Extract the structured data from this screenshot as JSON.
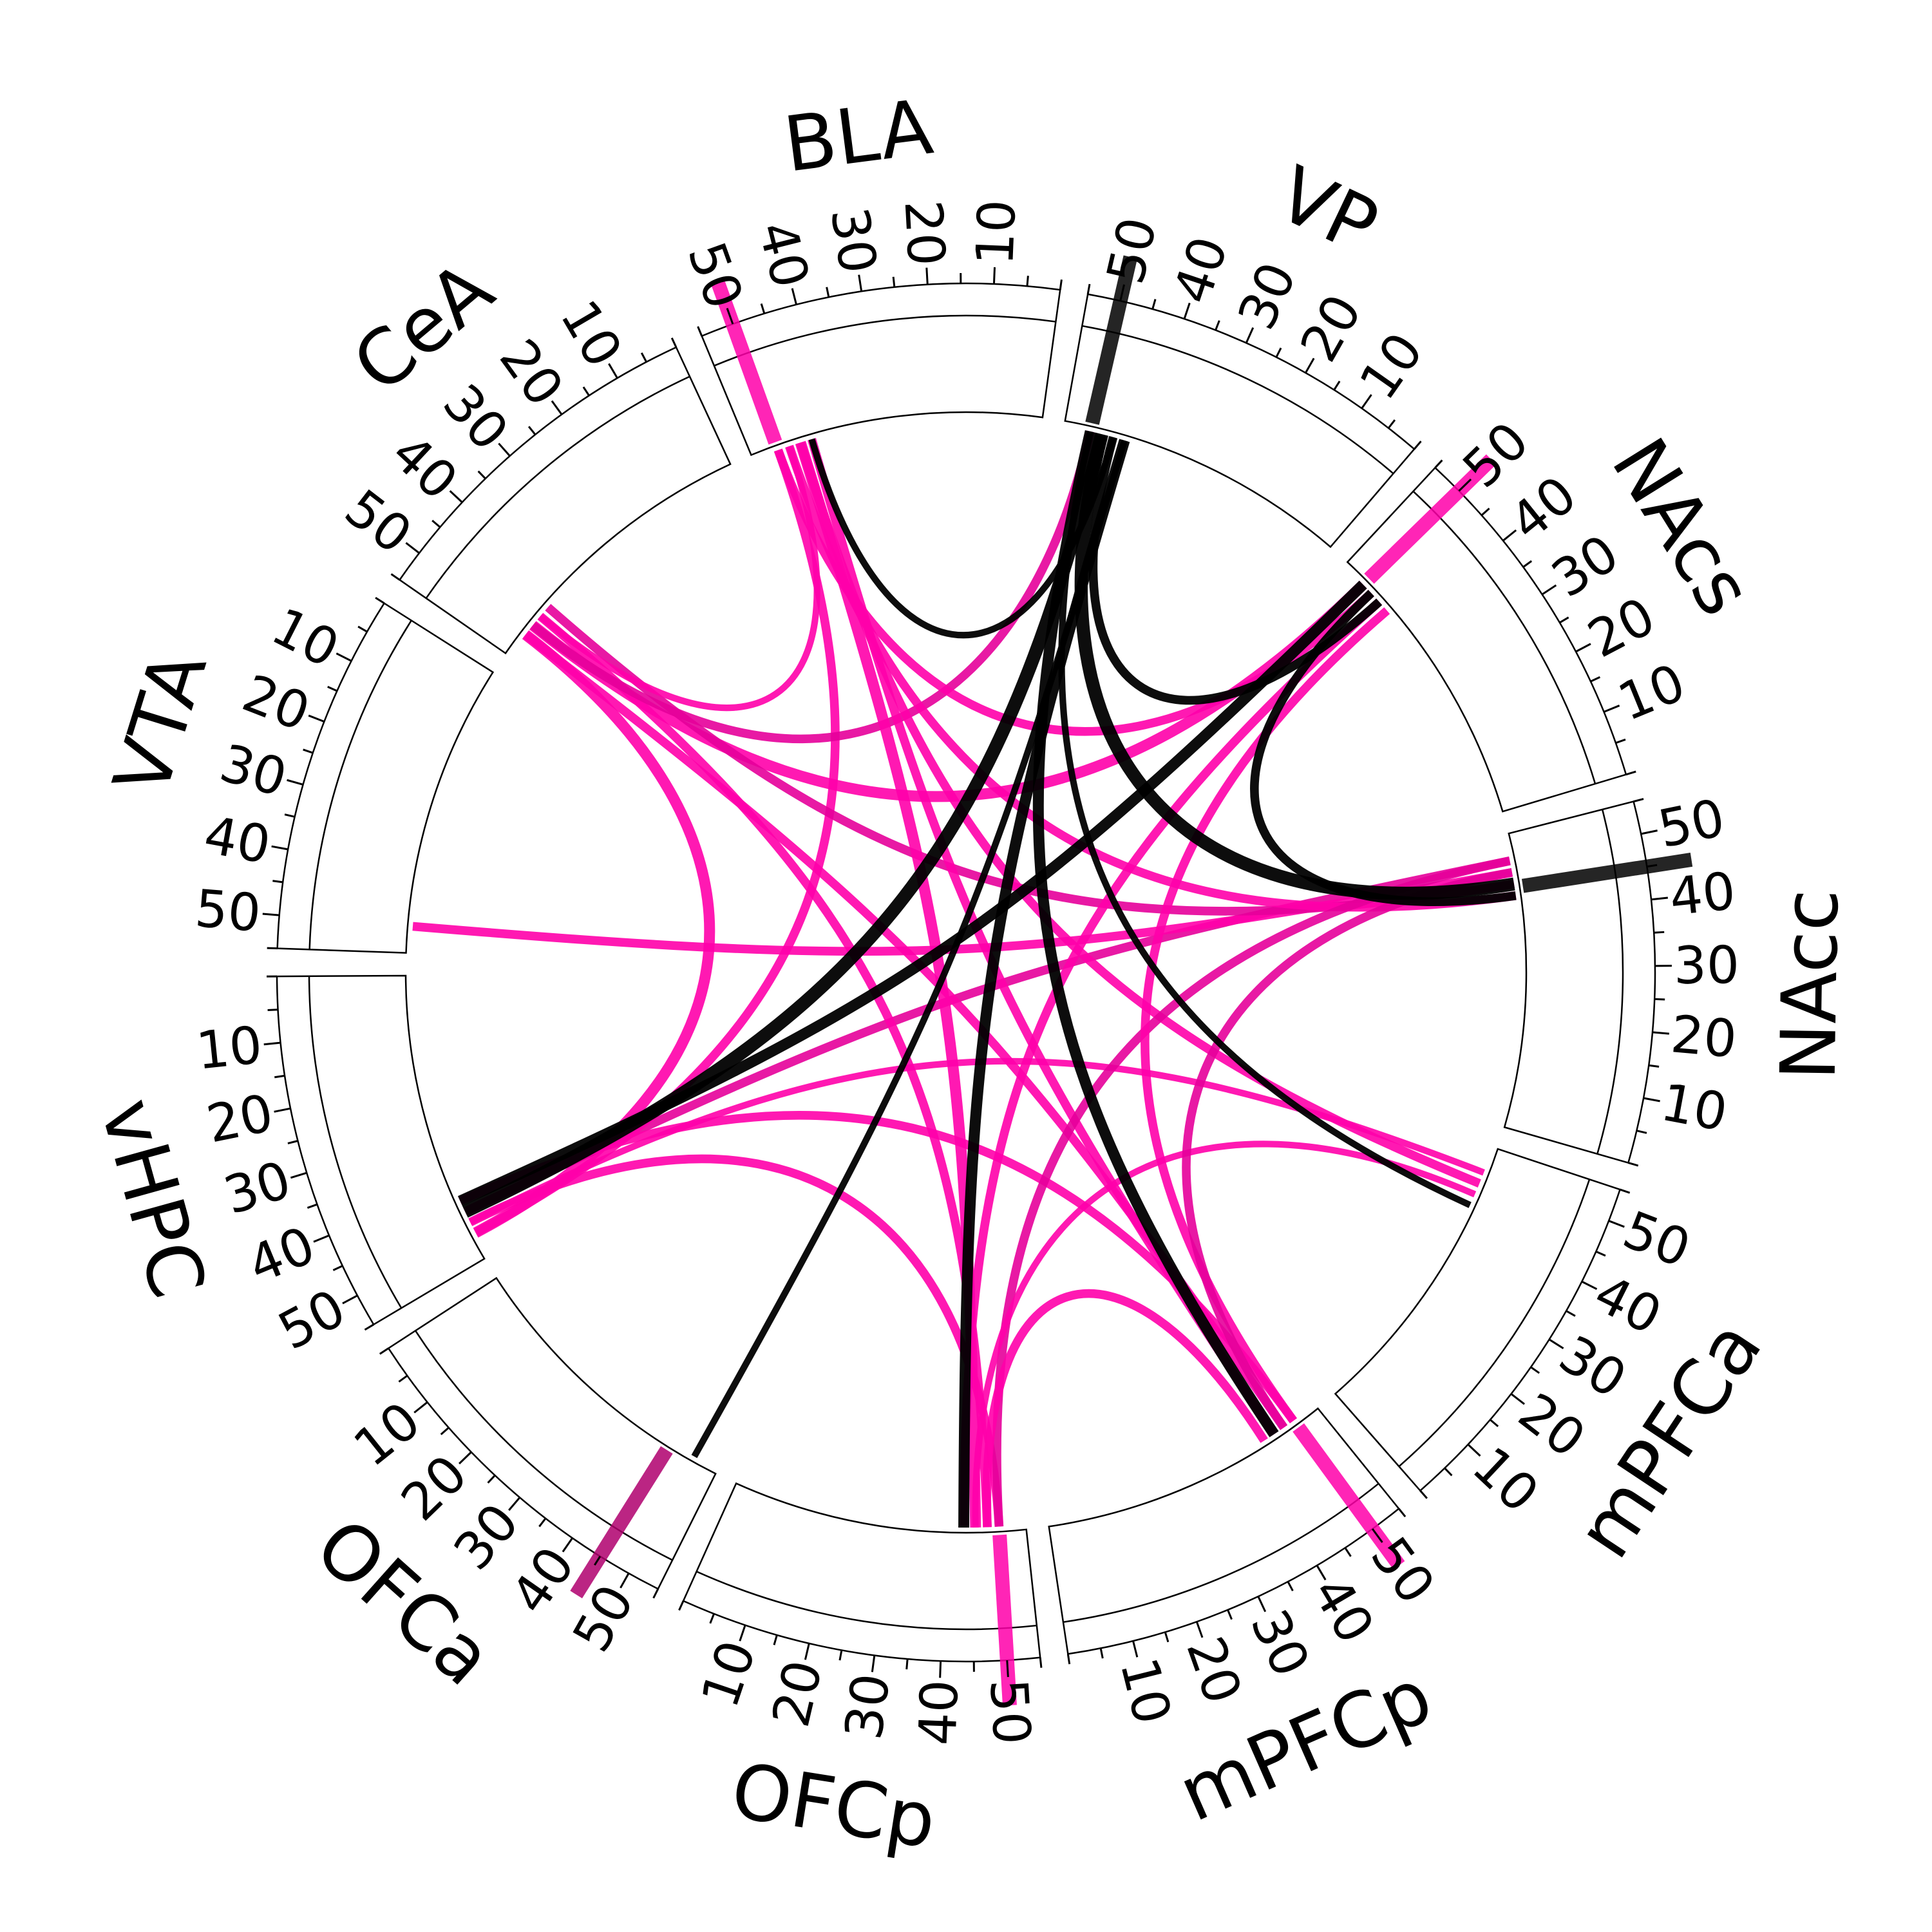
{
  "chart_data": {
    "type": "chord",
    "title": "",
    "colors": {
      "pink": "#ff00aa",
      "magenta": "#e6009a",
      "black": "#000000"
    },
    "tick_values": [
      10,
      20,
      30,
      40,
      50
    ],
    "regions": [
      {
        "name": "VTA"
      },
      {
        "name": "CeA"
      },
      {
        "name": "BLA"
      },
      {
        "name": "VP"
      },
      {
        "name": "NAcs"
      },
      {
        "name": "NAcc"
      },
      {
        "name": "mPFCa"
      },
      {
        "name": "mPFCp"
      },
      {
        "name": "OFCp"
      },
      {
        "name": "OFCa"
      },
      {
        "name": "vHPC"
      }
    ],
    "outer_bars": [
      {
        "region": "OFCa",
        "value": 45,
        "color": "mixed"
      },
      {
        "region": "OFCp",
        "value": 50,
        "color": "pink"
      },
      {
        "region": "mPFCp",
        "value": 50,
        "color": "pink"
      },
      {
        "region": "BLA",
        "value": 50,
        "color": "pink"
      },
      {
        "region": "VP",
        "value": 50,
        "color": "black"
      },
      {
        "region": "NAcs",
        "value": 50,
        "color": "pink"
      },
      {
        "region": "NAcc",
        "value": 45,
        "color": "black"
      }
    ],
    "connections": [
      {
        "from": "vHPC",
        "to": "VP",
        "color": "black",
        "width": 6
      },
      {
        "from": "vHPC",
        "to": "NAcs",
        "color": "black",
        "width": 5
      },
      {
        "from": "vHPC",
        "to": "CeA",
        "color": "pink",
        "width": 5
      },
      {
        "from": "vHPC",
        "to": "OFCp",
        "color": "pink",
        "width": 4
      },
      {
        "from": "vHPC",
        "to": "NAcc",
        "color": "magenta",
        "width": 4
      },
      {
        "from": "vHPC",
        "to": "mPFCp",
        "color": "pink",
        "width": 4
      },
      {
        "from": "vHPC",
        "to": "BLA",
        "color": "pink",
        "width": 4
      },
      {
        "from": "vHPC",
        "to": "mPFCa",
        "color": "pink",
        "width": 3
      },
      {
        "from": "VTA",
        "to": "NAcc",
        "color": "pink",
        "width": 4
      },
      {
        "from": "CeA",
        "to": "NAcs",
        "color": "pink",
        "width": 5
      },
      {
        "from": "CeA",
        "to": "OFCp",
        "color": "pink",
        "width": 4
      },
      {
        "from": "CeA",
        "to": "NAcc",
        "color": "magenta",
        "width": 4
      },
      {
        "from": "CeA",
        "to": "mPFCp",
        "color": "pink",
        "width": 4
      },
      {
        "from": "CeA",
        "to": "VP",
        "color": "magenta",
        "width": 4
      },
      {
        "from": "CeA",
        "to": "BLA",
        "color": "pink",
        "width": 3
      },
      {
        "from": "BLA",
        "to": "OFCp",
        "color": "pink",
        "width": 5
      },
      {
        "from": "BLA",
        "to": "mPFCp",
        "color": "pink",
        "width": 4
      },
      {
        "from": "BLA",
        "to": "NAcs",
        "color": "pink",
        "width": 4
      },
      {
        "from": "BLA",
        "to": "NAcc",
        "color": "pink",
        "width": 4
      },
      {
        "from": "BLA",
        "to": "mPFCa",
        "color": "pink",
        "width": 4
      },
      {
        "from": "BLA",
        "to": "VP",
        "color": "black",
        "width": 3
      },
      {
        "from": "OFCp",
        "to": "VP",
        "color": "black",
        "width": 5
      },
      {
        "from": "OFCp",
        "to": "NAcs",
        "color": "pink",
        "width": 4
      },
      {
        "from": "OFCp",
        "to": "NAcc",
        "color": "magenta",
        "width": 4
      },
      {
        "from": "OFCp",
        "to": "mPFCp",
        "color": "pink",
        "width": 4
      },
      {
        "from": "OFCp",
        "to": "mPFCa",
        "color": "pink",
        "width": 3
      },
      {
        "from": "mPFCp",
        "to": "VP",
        "color": "black",
        "width": 5
      },
      {
        "from": "mPFCp",
        "to": "NAcs",
        "color": "pink",
        "width": 4
      },
      {
        "from": "mPFCp",
        "to": "NAcc",
        "color": "magenta",
        "width": 4
      },
      {
        "from": "NAcc",
        "to": "VP",
        "color": "black",
        "width": 6
      },
      {
        "from": "NAcc",
        "to": "NAcs",
        "color": "black",
        "width": 4
      },
      {
        "from": "NAcs",
        "to": "VP",
        "color": "black",
        "width": 4
      },
      {
        "from": "OFCa",
        "to": "VP",
        "color": "black",
        "width": 3
      },
      {
        "from": "mPFCa",
        "to": "VP",
        "color": "black",
        "width": 3
      }
    ]
  }
}
